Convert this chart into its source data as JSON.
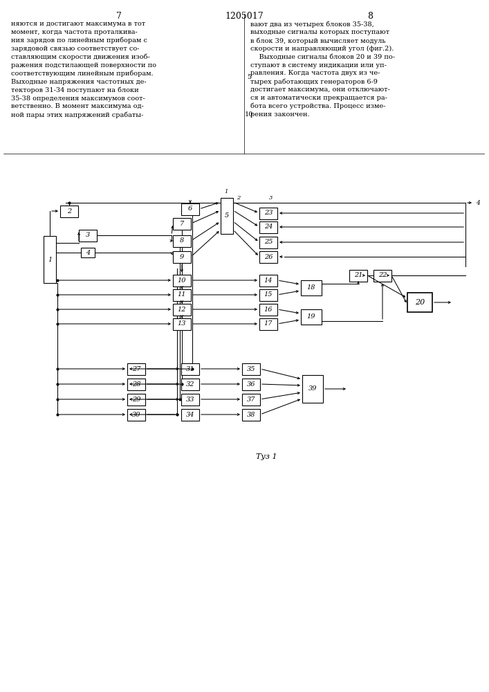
{
  "page_num_left": "7",
  "page_num_center": "1205017",
  "page_num_right": "8",
  "text_col1": "няются и достигают максимума в тот\nмомент, когда частота проталкива-\nния зарядов по линейным приборам с\nзарядовой связью соответствует со-\nставляющим скорости движения изоб-\nражения подстилающей поверхности по\nсоответствующим линейным приборам.\nВыходные напряжения частотных де-\nтекторов 31-34 поступают на блоки\n35-38 определения максимумов соот-\nветственно. В момент максимума од-\nной пары этих напряжений срабаты-",
  "text_col2": "вают два из четырех блоков 35-38,\nвыходные сигналы которых поступают\nв блок 39, который вычисляет модуль\nскорости и направляющий угол (фиг.2).\n    Выходные сигналы блоков 20 и 39 по-\nступают в систему индикации или уп-\nравления. Когда частота двух из че-\nтырех работающих генераторов 6-9\nдостигает максимума, они отключают-\nся и автоматически прекращается ра-\nбота всего устройства. Процесс изме-\nрения закончен.",
  "line5": "5",
  "line10": "10",
  "fig_caption": "Τуз 1",
  "bg": "#ffffff"
}
